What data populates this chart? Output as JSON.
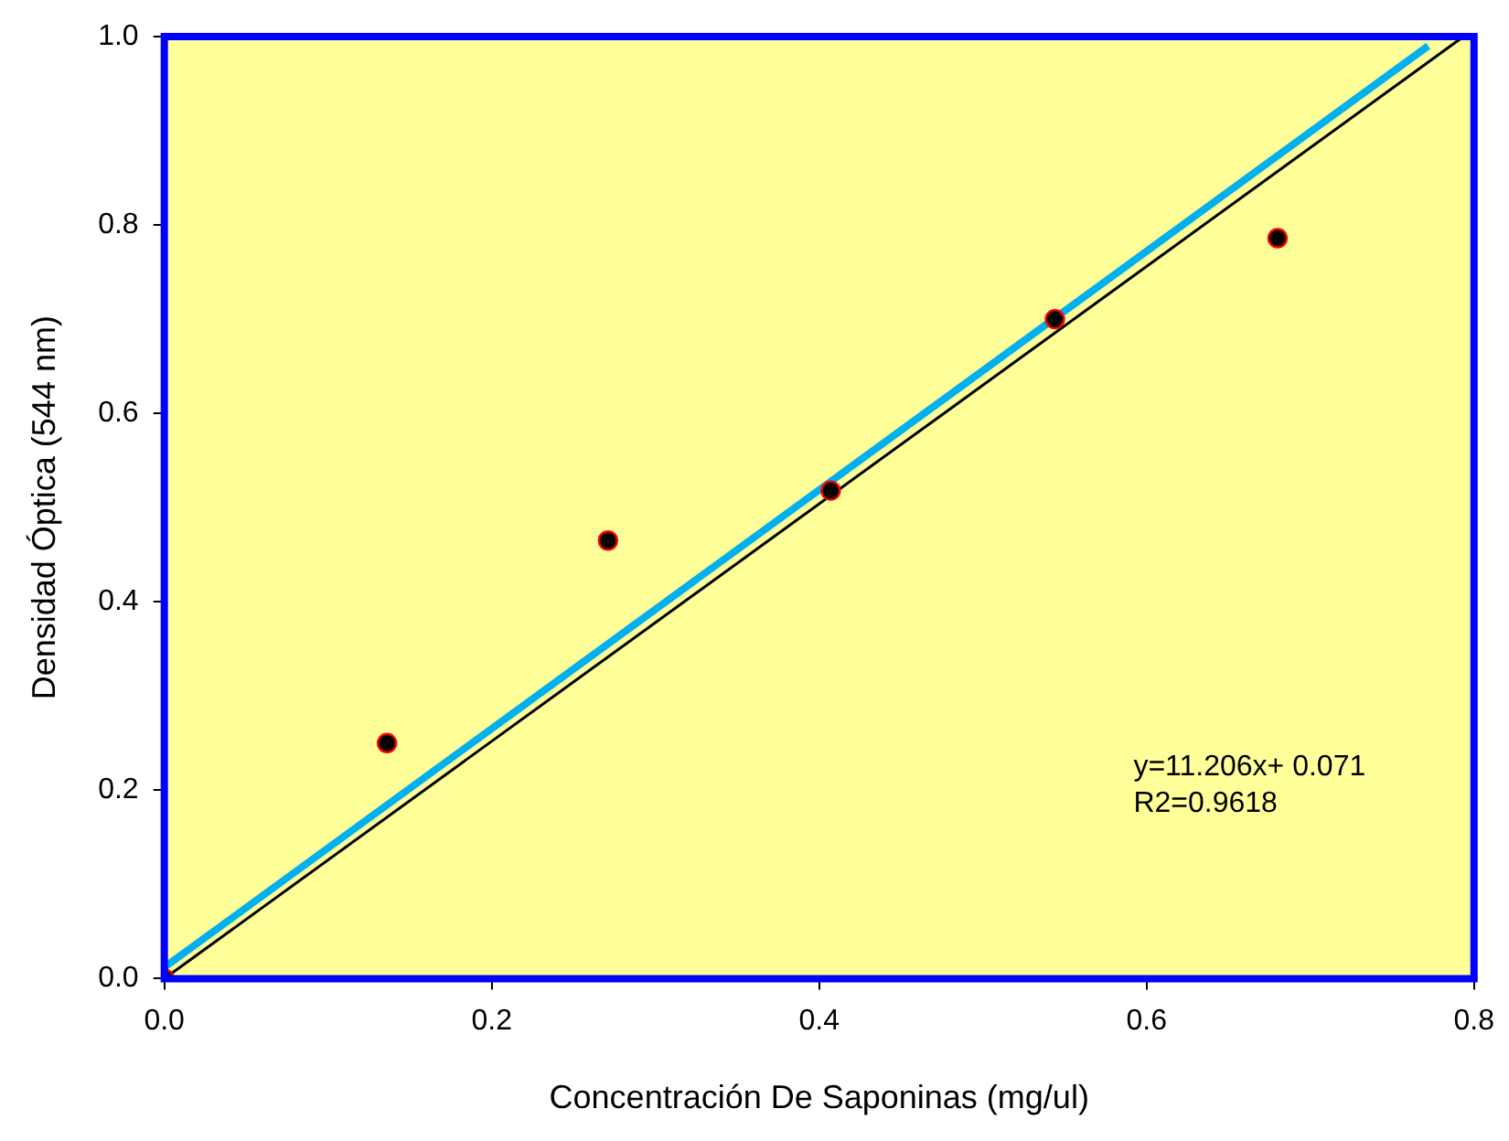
{
  "chart_data": {
    "type": "scatter",
    "xlabel": "Concentración De Saponinas (mg/ul)",
    "ylabel": "Densidad Óptica (544 nm)",
    "xlim": [
      0,
      0.8
    ],
    "ylim": [
      0,
      1.0
    ],
    "xticks": [
      {
        "value": 0,
        "label": "0.0"
      },
      0.2,
      0.4,
      0.6,
      0.8
    ],
    "yticks": [
      {
        "value": 0,
        "label": "0.0"
      },
      0.2,
      0.4,
      0.6,
      0.8,
      {
        "value": 1,
        "label": "1.0"
      }
    ],
    "grid": false,
    "legend": false,
    "series": [
      {
        "marker": "circle",
        "color": "#000000",
        "x": [
          0,
          0.136,
          0.271,
          0.407,
          0.544,
          0.68
        ],
        "values": [
          0,
          0.25,
          0.465,
          0.518,
          0.7,
          0.786
        ]
      },
      {
        "type": "line",
        "marker": "none",
        "color": "#00b0f0",
        "x": [
          0,
          0.772
        ],
        "values": [
          0.012,
          0.99
        ]
      },
      {
        "type": "line",
        "marker": "none",
        "color": "#000000",
        "x": [
          0,
          0.792
        ],
        "values": [
          0,
          0.998
        ]
      }
    ],
    "annotations": [
      "y=11.206x+ 0.071\nR2=0.9618"
    ]
  }
}
